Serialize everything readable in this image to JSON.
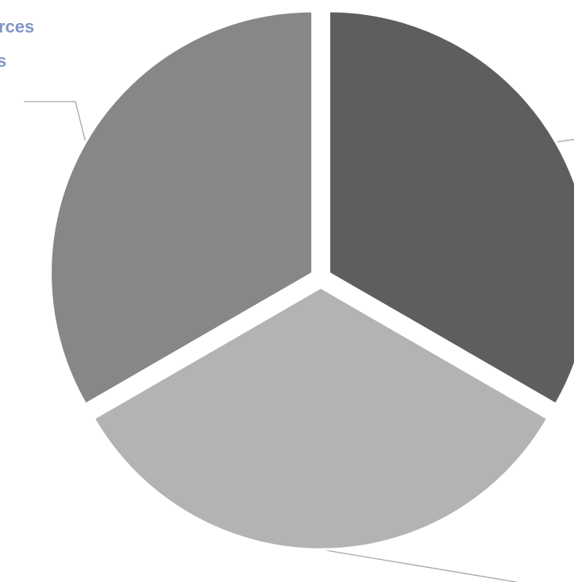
{
  "chart_data": {
    "type": "pie",
    "slices": [
      {
        "label": "",
        "value": 1,
        "color": "#5e5e5e"
      },
      {
        "label": "",
        "value": 1,
        "color": "#b3b3b3"
      },
      {
        "label": "Resources\nS",
        "value": 1,
        "color": "#878787"
      }
    ],
    "legend": "none",
    "exploded": true
  },
  "visible_label_fragments": [
    "rces",
    "s"
  ]
}
